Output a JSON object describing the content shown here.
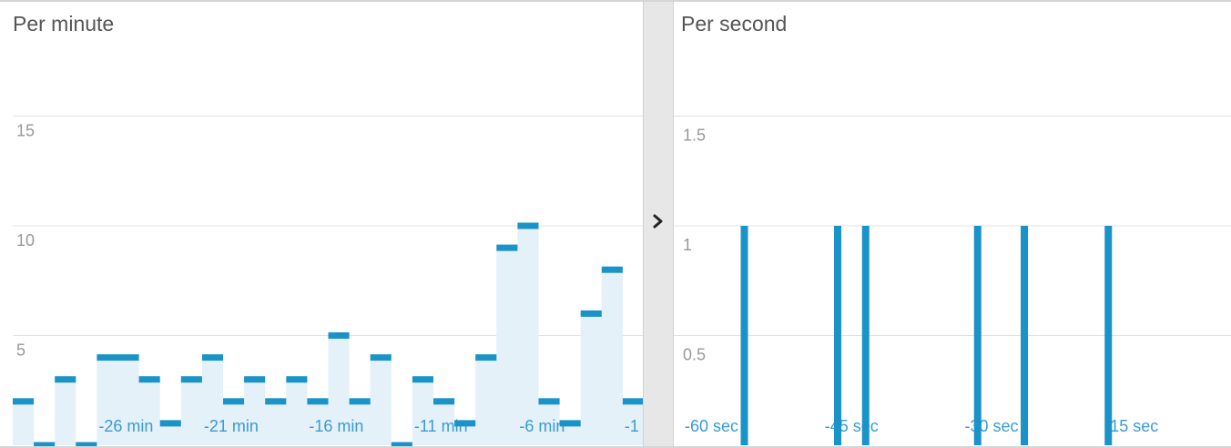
{
  "panels": {
    "minute": {
      "title": "Per minute"
    },
    "second": {
      "title": "Per second"
    }
  },
  "divider": {
    "icon": "chevron-right-icon"
  },
  "colors": {
    "bar": "#1a93c9",
    "fill": "#e4f1f9",
    "grid": "#e0e0e0",
    "tick": "#999999",
    "xlabel": "#3a9bd1"
  },
  "chart_data": [
    {
      "type": "area",
      "title": "Per minute",
      "ylim": [
        0,
        20
      ],
      "yticks": [
        "5",
        "10",
        "15"
      ],
      "ytick_values": [
        5,
        10,
        15
      ],
      "grid": true,
      "xlabels": [
        "-26 min",
        "-21 min",
        "-16 min",
        "-11 min",
        "-6 min",
        "-1"
      ],
      "xlabel_positions": [
        -26,
        -21,
        -16,
        -11,
        -6,
        -1
      ],
      "x": [
        -30,
        -29,
        -28,
        -27,
        -26,
        -25,
        -24,
        -23,
        -22,
        -21,
        -20,
        -19,
        -18,
        -17,
        -16,
        -15,
        -14,
        -13,
        -12,
        -11,
        -10,
        -9,
        -8,
        -7,
        -6,
        -5,
        -4,
        -3,
        -2,
        -1
      ],
      "values": [
        2,
        0,
        3,
        0,
        4,
        4,
        3,
        1,
        3,
        4,
        2,
        3,
        2,
        3,
        2,
        5,
        2,
        4,
        0,
        3,
        2,
        1,
        4,
        9,
        10,
        2,
        1,
        6,
        8,
        2
      ]
    },
    {
      "type": "bar",
      "title": "Per second",
      "ylim": [
        0,
        2
      ],
      "yticks": [
        "0.5",
        "1",
        "1.5"
      ],
      "ytick_values": [
        0.5,
        1,
        1.5
      ],
      "grid": true,
      "xlabels": [
        "-60 sec",
        "-45 sec",
        "-30 sec",
        "-15 sec"
      ],
      "xlabel_positions": [
        -60,
        -45,
        -30,
        -15
      ],
      "x": [
        -54,
        -44,
        -41,
        -29,
        -24,
        -15
      ],
      "values": [
        1,
        1,
        1,
        1,
        1,
        1
      ]
    }
  ]
}
